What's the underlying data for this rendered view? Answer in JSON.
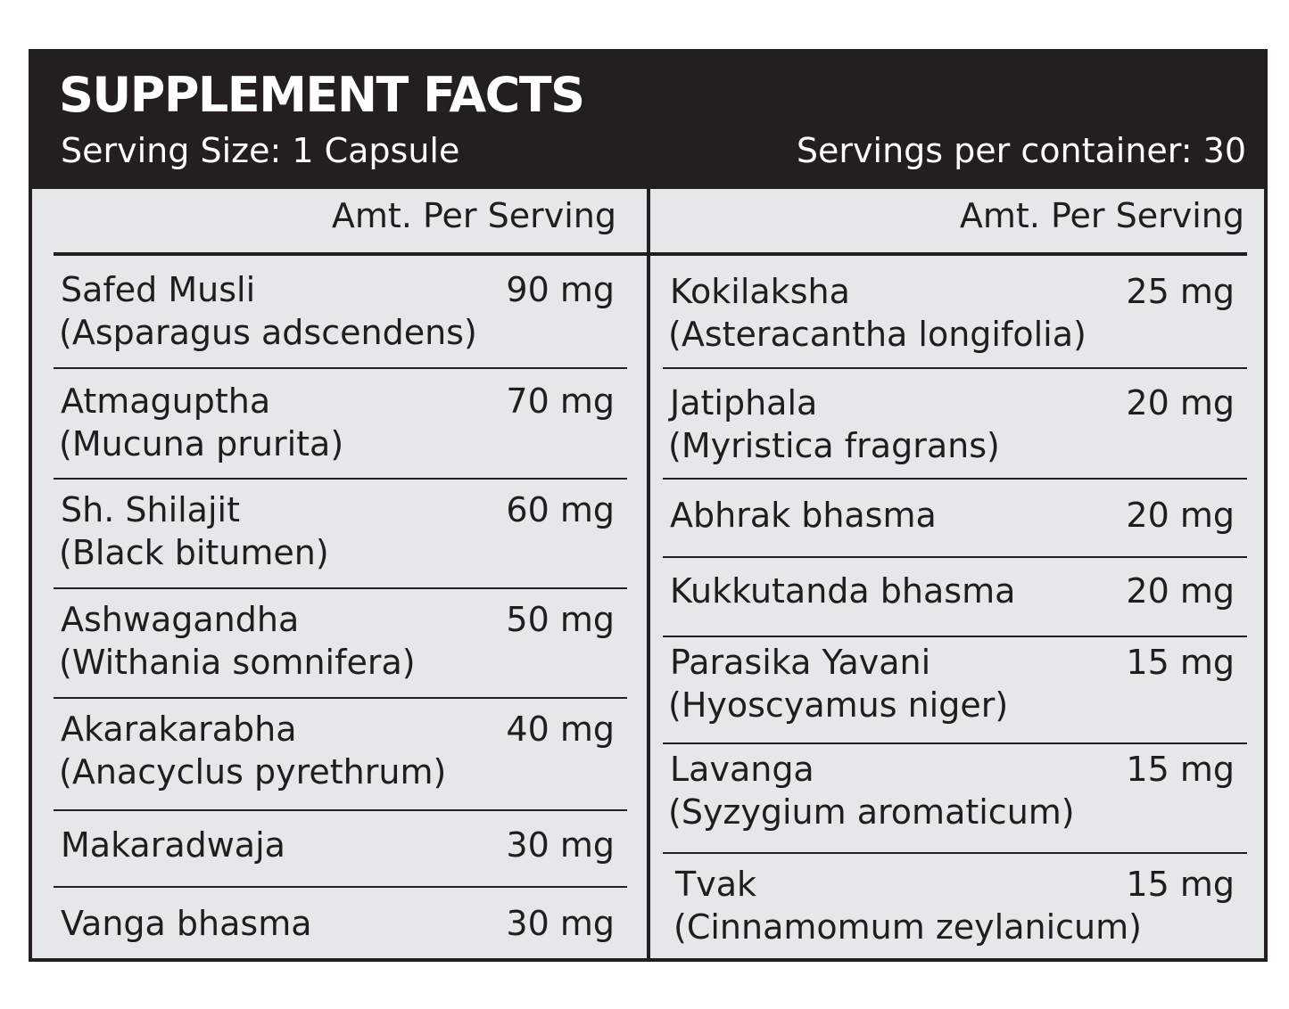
{
  "title": "SUPPLEMENT FACTS",
  "serving_size": "Serving Size: 1 Capsule",
  "servings_per_container": "Servings per container: 30",
  "column_header": "Amt. Per Serving",
  "left_ingredients": [
    {
      "name": "Safed Musli",
      "latin": "(Asparagus adscendens)",
      "amount": "90 mg"
    },
    {
      "name": "Atmaguptha",
      "latin": "(Mucuna prurita)",
      "amount": "70 mg"
    },
    {
      "name": "Sh. Shilajit",
      "latin": "(Black bitumen)",
      "amount": "60 mg"
    },
    {
      "name": "Ashwagandha",
      "latin": "(Withania somnifera)",
      "amount": "50 mg"
    },
    {
      "name": "Akarakarabha",
      "latin": "(Anacyclus pyrethrum)",
      "amount": "40 mg"
    },
    {
      "name": "Makaradwaja",
      "amount": "30 mg"
    },
    {
      "name": "Vanga bhasma",
      "amount": "30 mg"
    }
  ],
  "right_ingredients": [
    {
      "name": "Kokilaksha",
      "latin": "(Asteracantha longifolia)",
      "amount": "25 mg"
    },
    {
      "name": "Jatiphala",
      "latin": "(Myristica fragrans)",
      "amount": "20 mg"
    },
    {
      "name": "Abhrak bhasma",
      "amount": "20 mg"
    },
    {
      "name": "Kukkutanda bhasma",
      "amount": "20 mg"
    },
    {
      "name": "Parasika Yavani",
      "latin": "(Hyoscyamus niger)",
      "amount": "15 mg"
    },
    {
      "name": "Lavanga",
      "latin": "(Syzygium aromaticum)",
      "amount": "15 mg"
    },
    {
      "name": "Tvak",
      "latin": "(Cinnamomum zeylanicum)",
      "amount": "15 mg"
    }
  ],
  "colors": {
    "header_bg": "#231f20",
    "panel_bg": "#e6e7e8",
    "text": "#1e1e1e",
    "header_text": "#ffffff"
  }
}
